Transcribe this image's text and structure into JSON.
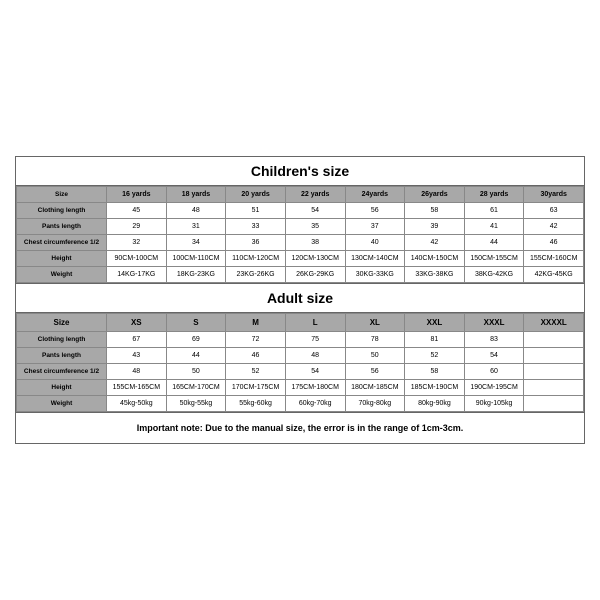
{
  "children": {
    "title": "Children's size",
    "header_first": "Size",
    "sizes": [
      "16 yards",
      "18 yards",
      "20 yards",
      "22 yards",
      "24yards",
      "26yards",
      "28 yards",
      "30yards"
    ],
    "rows": [
      {
        "label": "Clothing length",
        "v": [
          "45",
          "48",
          "51",
          "54",
          "56",
          "58",
          "61",
          "63"
        ]
      },
      {
        "label": "Pants length",
        "v": [
          "29",
          "31",
          "33",
          "35",
          "37",
          "39",
          "41",
          "42"
        ]
      },
      {
        "label": "Chest circumference 1/2",
        "v": [
          "32",
          "34",
          "36",
          "38",
          "40",
          "42",
          "44",
          "46"
        ]
      },
      {
        "label": "Height",
        "v": [
          "90CM-100CM",
          "100CM-110CM",
          "110CM-120CM",
          "120CM-130CM",
          "130CM-140CM",
          "140CM-150CM",
          "150CM-155CM",
          "155CM-160CM"
        ]
      },
      {
        "label": "Weight",
        "v": [
          "14KG-17KG",
          "18KG-23KG",
          "23KG-26KG",
          "26KG-29KG",
          "30KG-33KG",
          "33KG-38KG",
          "38KG-42KG",
          "42KG-45KG"
        ]
      }
    ]
  },
  "adult": {
    "title": "Adult size",
    "header_first": "Size",
    "sizes": [
      "XS",
      "S",
      "M",
      "L",
      "XL",
      "XXL",
      "XXXL",
      "XXXXL"
    ],
    "rows": [
      {
        "label": "Clothing length",
        "v": [
          "67",
          "69",
          "72",
          "75",
          "78",
          "81",
          "83",
          ""
        ]
      },
      {
        "label": "Pants length",
        "v": [
          "43",
          "44",
          "46",
          "48",
          "50",
          "52",
          "54",
          ""
        ]
      },
      {
        "label": "Chest circumference 1/2",
        "v": [
          "48",
          "50",
          "52",
          "54",
          "56",
          "58",
          "60",
          ""
        ]
      },
      {
        "label": "Height",
        "v": [
          "155CM-165CM",
          "165CM-170CM",
          "170CM-175CM",
          "175CM-180CM",
          "180CM-185CM",
          "185CM-190CM",
          "190CM-195CM",
          ""
        ]
      },
      {
        "label": "Weight",
        "v": [
          "45kg-50kg",
          "50kg-55kg",
          "55kg-60kg",
          "60kg-70kg",
          "70kg-80kg",
          "80kg-90kg",
          "90kg-105kg",
          ""
        ]
      }
    ]
  },
  "note": "Important note: Due to the manual size, the error is in the range of 1cm-3cm."
}
